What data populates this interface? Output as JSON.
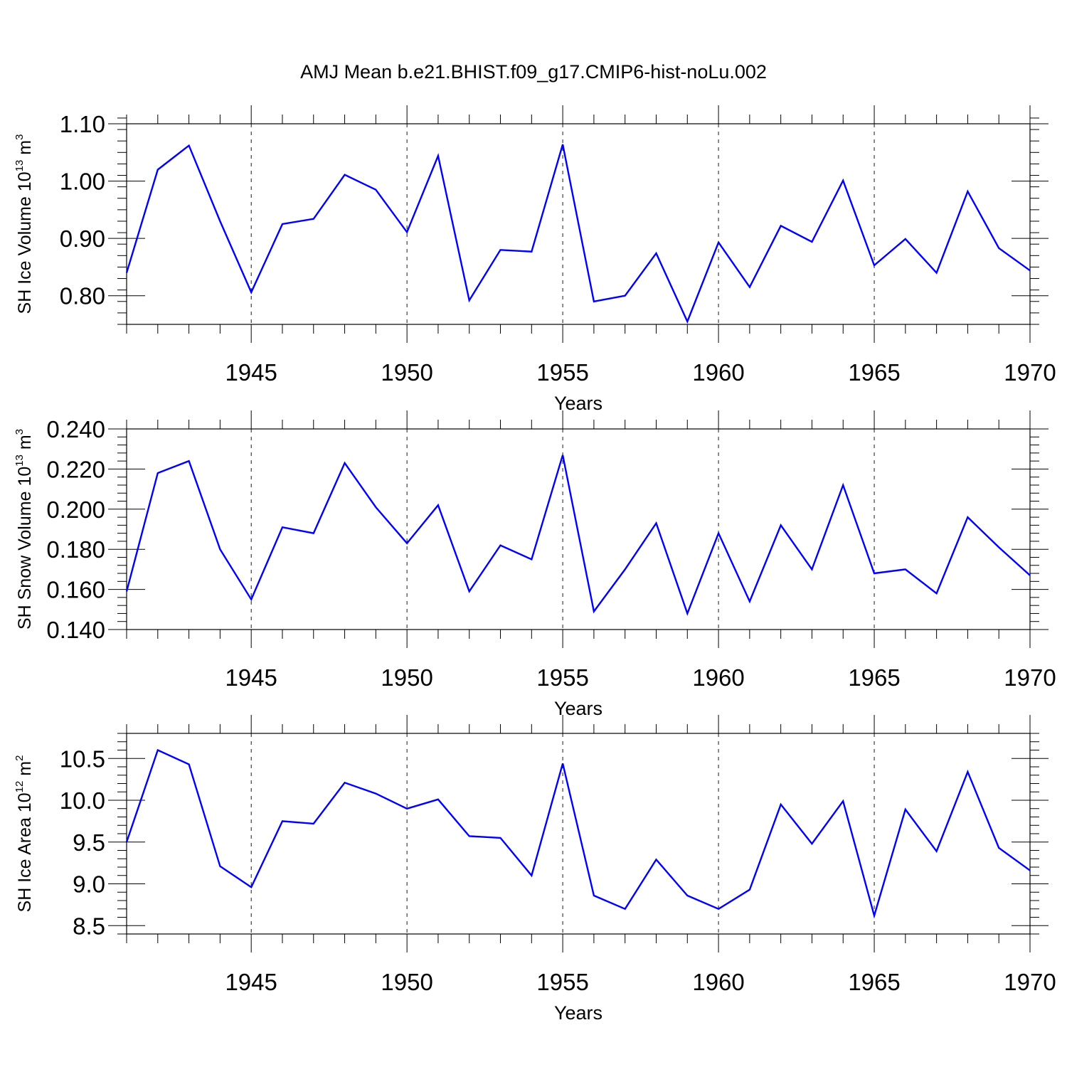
{
  "title": "AMJ Mean b.e21.BHIST.f09_g17.CMIP6-hist-noLu.002",
  "line_color": "#0000ff",
  "chart_data": [
    {
      "type": "line",
      "ylabel": "SH Ice Volume 10",
      "ylabel_exp": "13",
      "ylabel_unit": " m",
      "ylabel_unit_exp": "3",
      "xlabel": "Years",
      "xlim": [
        1941,
        1970
      ],
      "ylim": [
        0.75,
        1.1
      ],
      "xticks": [
        1945,
        1950,
        1955,
        1960,
        1965,
        1970
      ],
      "yticks": [
        0.8,
        0.9,
        1.0,
        1.1
      ],
      "yticks_minor_step": 0.02,
      "ytick_labels": [
        "0.80",
        "0.90",
        "1.00",
        "1.10"
      ],
      "x": [
        1941,
        1942,
        1943,
        1944,
        1945,
        1946,
        1947,
        1948,
        1949,
        1950,
        1951,
        1952,
        1953,
        1954,
        1955,
        1956,
        1957,
        1958,
        1959,
        1960,
        1961,
        1962,
        1963,
        1964,
        1965,
        1966,
        1967,
        1968,
        1969,
        1970
      ],
      "values": [
        0.84,
        1.02,
        1.062,
        0.93,
        0.806,
        0.925,
        0.934,
        1.011,
        0.985,
        0.911,
        1.044,
        0.792,
        0.88,
        0.877,
        1.064,
        0.79,
        0.8,
        0.874,
        0.755,
        0.893,
        0.815,
        0.922,
        0.894,
        1.001,
        0.853,
        0.899,
        0.84,
        0.982,
        0.883,
        0.844
      ]
    },
    {
      "type": "line",
      "ylabel": "SH Snow Volume 10",
      "ylabel_exp": "13",
      "ylabel_unit": " m",
      "ylabel_unit_exp": "3",
      "xlabel": "Years",
      "xlim": [
        1941,
        1970
      ],
      "ylim": [
        0.14,
        0.24
      ],
      "xticks": [
        1945,
        1950,
        1955,
        1960,
        1965,
        1970
      ],
      "yticks": [
        0.14,
        0.16,
        0.18,
        0.2,
        0.22,
        0.24
      ],
      "yticks_minor_step": 0.004,
      "ytick_labels": [
        "0.140",
        "0.160",
        "0.180",
        "0.200",
        "0.220",
        "0.240"
      ],
      "x": [
        1941,
        1942,
        1943,
        1944,
        1945,
        1946,
        1947,
        1948,
        1949,
        1950,
        1951,
        1952,
        1953,
        1954,
        1955,
        1956,
        1957,
        1958,
        1959,
        1960,
        1961,
        1962,
        1963,
        1964,
        1965,
        1966,
        1967,
        1968,
        1969,
        1970
      ],
      "values": [
        0.159,
        0.218,
        0.224,
        0.18,
        0.155,
        0.191,
        0.188,
        0.223,
        0.201,
        0.183,
        0.202,
        0.159,
        0.182,
        0.175,
        0.227,
        0.149,
        0.17,
        0.193,
        0.148,
        0.188,
        0.154,
        0.192,
        0.17,
        0.212,
        0.168,
        0.17,
        0.158,
        0.196,
        0.181,
        0.167
      ]
    },
    {
      "type": "line",
      "ylabel": "SH Ice Area 10",
      "ylabel_exp": "12",
      "ylabel_unit": " m",
      "ylabel_unit_exp": "2",
      "xlabel": "Years",
      "xlim": [
        1941,
        1970
      ],
      "ylim": [
        8.4,
        10.8
      ],
      "xticks": [
        1945,
        1950,
        1955,
        1960,
        1965,
        1970
      ],
      "yticks": [
        8.5,
        9.0,
        9.5,
        10.0,
        10.5
      ],
      "yticks_minor_step": 0.1,
      "ytick_labels": [
        "8.5",
        "9.0",
        "9.5",
        "10.0",
        "10.5"
      ],
      "x": [
        1941,
        1942,
        1943,
        1944,
        1945,
        1946,
        1947,
        1948,
        1949,
        1950,
        1951,
        1952,
        1953,
        1954,
        1955,
        1956,
        1957,
        1958,
        1959,
        1960,
        1961,
        1962,
        1963,
        1964,
        1965,
        1966,
        1967,
        1968,
        1969,
        1970
      ],
      "values": [
        9.5,
        10.6,
        10.43,
        9.21,
        8.96,
        9.75,
        9.72,
        10.21,
        10.08,
        9.9,
        10.01,
        9.57,
        9.55,
        9.1,
        10.44,
        8.86,
        8.7,
        9.29,
        8.86,
        8.7,
        8.93,
        9.95,
        9.48,
        9.99,
        8.62,
        9.89,
        9.39,
        10.34,
        9.43,
        9.16
      ]
    }
  ]
}
